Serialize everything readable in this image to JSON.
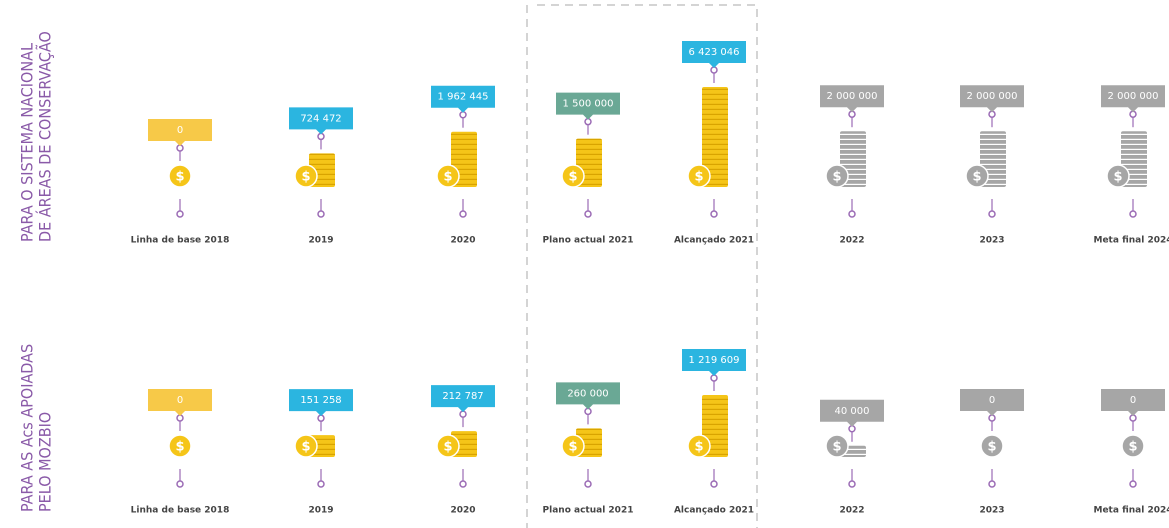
{
  "chart_data": [
    {
      "type": "pictogram",
      "title": [
        "PARA O SISTEMA NACIONAL",
        "DE ÁREAS DE CONSERVAÇÃO"
      ],
      "categories": [
        "Linha de base 2018",
        "2019",
        "2020",
        "Plano actual 2021",
        "Alcançado 2021",
        "2022",
        "2023",
        "Meta final 2024"
      ],
      "values": [
        0,
        724472,
        1962445,
        1500000,
        6423046,
        2000000,
        2000000,
        2000000
      ],
      "value_labels": [
        "0",
        "724 472",
        "1 962 445",
        "1 500 000",
        "6 423 046",
        "2 000 000",
        "2 000 000",
        "2 000 000"
      ],
      "colors": [
        "#f7c948",
        "#2bb5e0",
        "#2bb5e0",
        "#6aa895",
        "#2bb5e0",
        "#a6a6a6",
        "#a6a6a6",
        "#a6a6a6"
      ]
    },
    {
      "type": "pictogram",
      "title": [
        "PARA AS Acs APOIADAS",
        "PELO MOZBIO"
      ],
      "categories": [
        "Linha de base 2018",
        "2019",
        "2020",
        "Plano actual 2021",
        "Alcançado 2021",
        "2022",
        "2023",
        "Meta final 2024"
      ],
      "values": [
        0,
        151258,
        212787,
        260000,
        1219609,
        40000,
        0,
        0
      ],
      "value_labels": [
        "0",
        "151 258",
        "212 787",
        "260 000",
        "1 219 609",
        "40 000",
        "0",
        "0"
      ],
      "colors": [
        "#f7c948",
        "#2bb5e0",
        "#2bb5e0",
        "#6aa895",
        "#2bb5e0",
        "#a6a6a6",
        "#a6a6a6",
        "#a6a6a6"
      ]
    }
  ]
}
